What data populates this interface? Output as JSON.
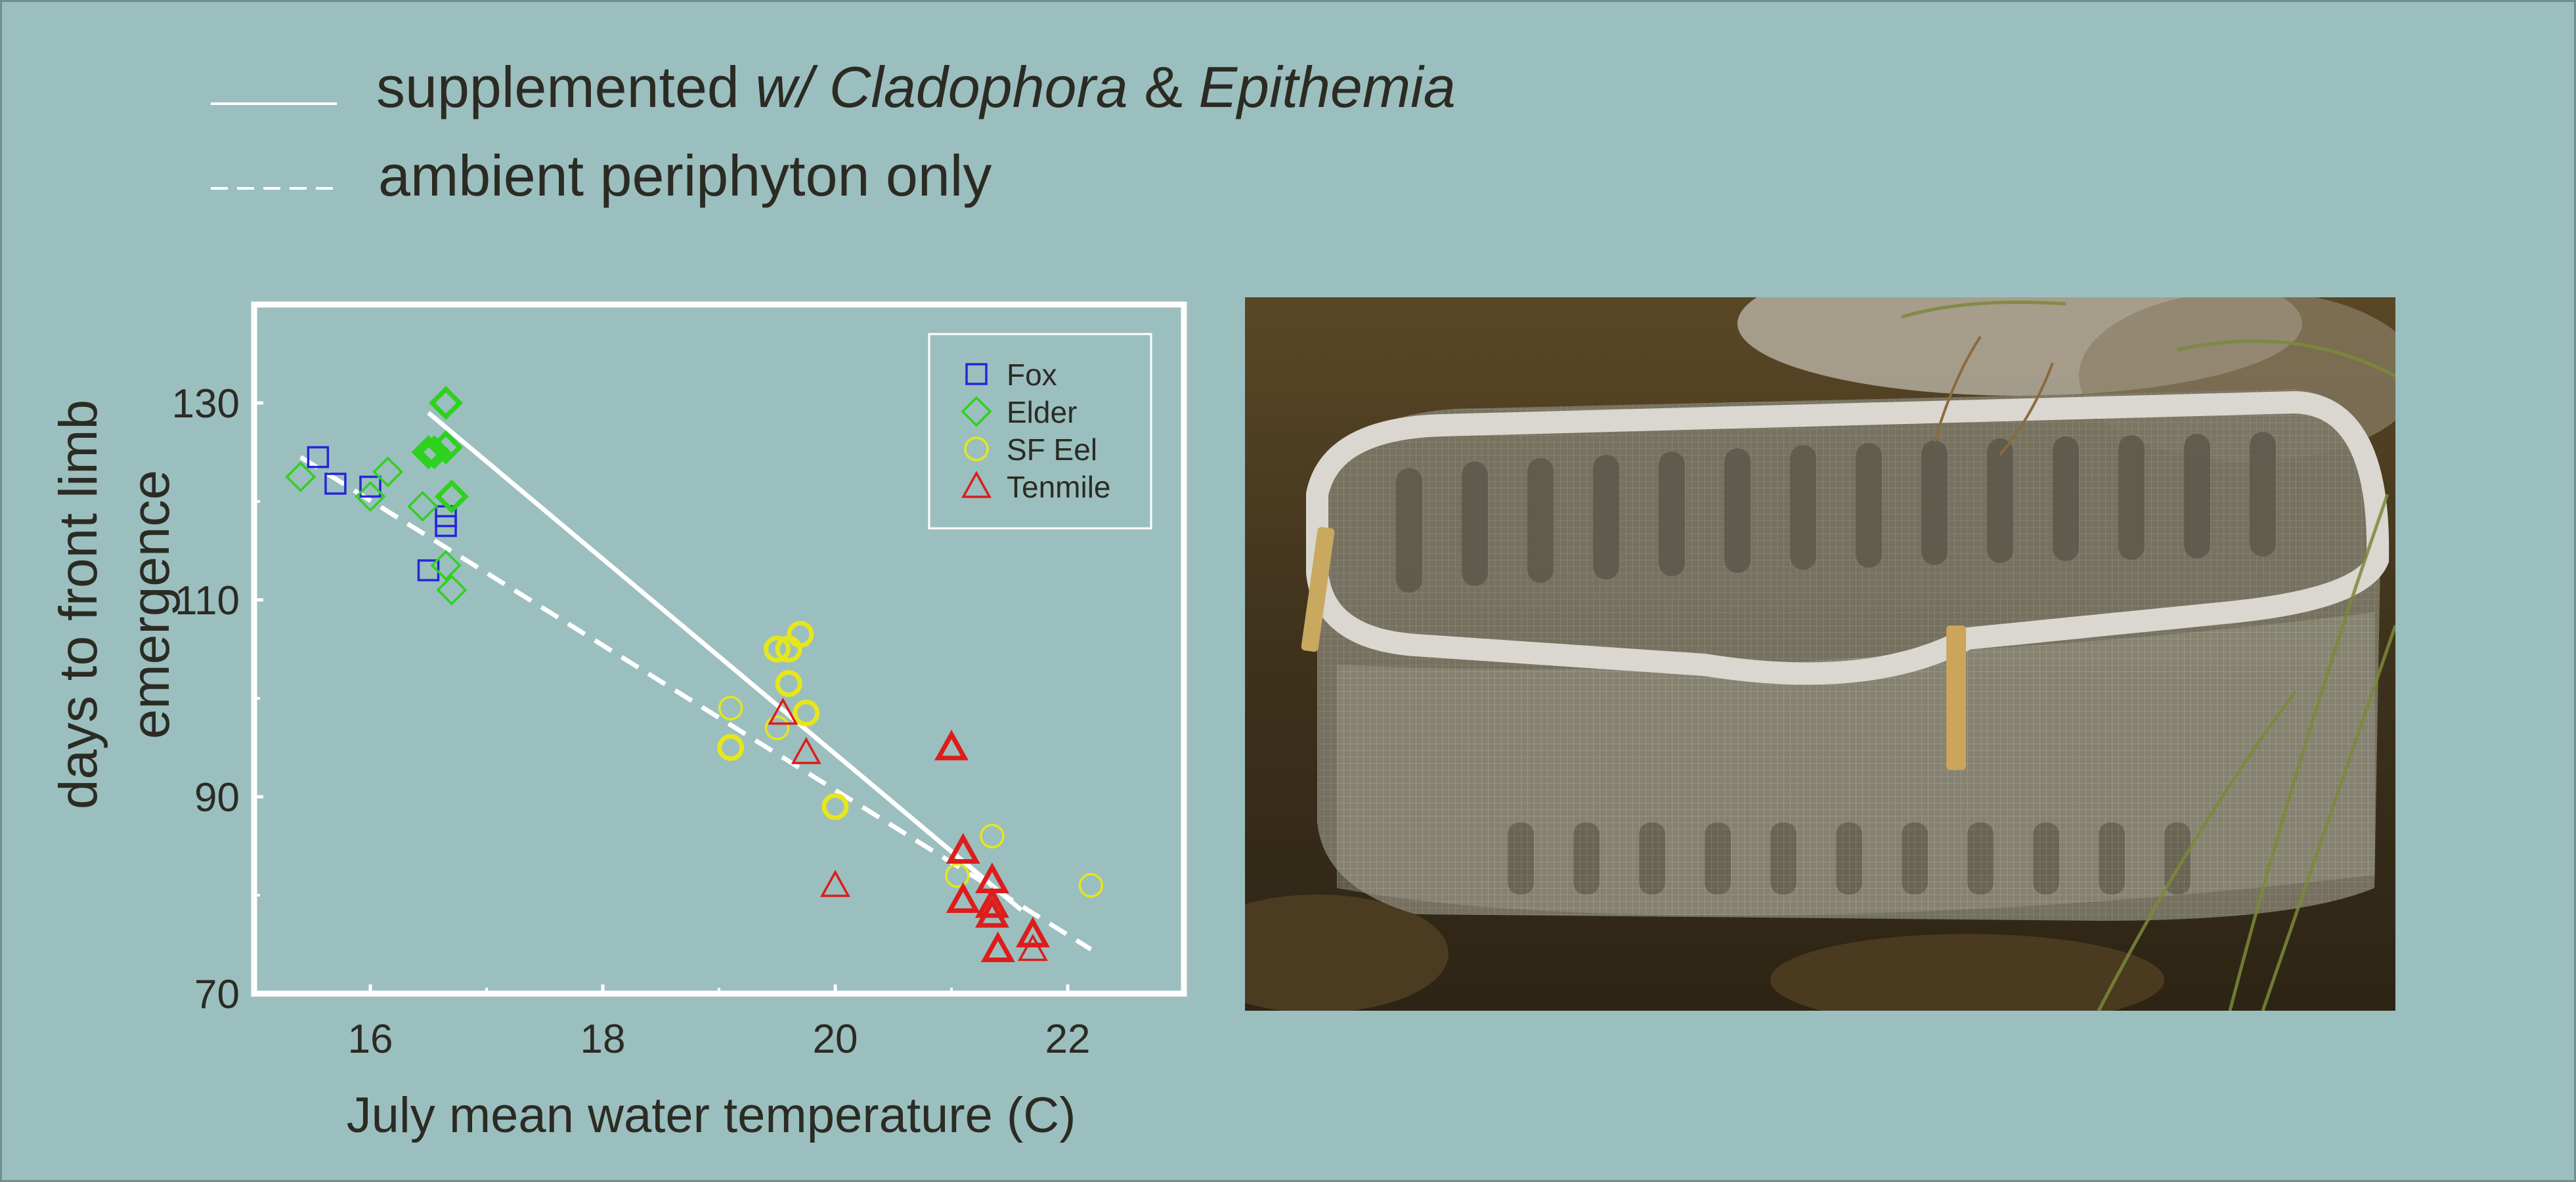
{
  "top_legend": {
    "solid": {
      "t1": "supplemented ",
      "t2": "w/ Cladophora",
      "t3": " & ",
      "t4": "Epithemia"
    },
    "dashed": "ambient periphyton only"
  },
  "chart_data": {
    "type": "scatter",
    "title": "",
    "xlabel": "July mean water temperature (C)",
    "ylabel_line1": "days to front limb",
    "ylabel_line2": "emergence",
    "xlim": [
      15,
      23
    ],
    "ylim": [
      70,
      140
    ],
    "xticks": [
      16,
      18,
      20,
      22
    ],
    "xtick_labels": [
      "16",
      "18",
      "20",
      "22"
    ],
    "yticks": [
      70,
      90,
      110,
      130
    ],
    "ytick_labels": [
      "70",
      "90",
      "110",
      "130"
    ],
    "grid": false,
    "legend_position": "top-right",
    "colors": {
      "Fox": "#2626d9",
      "Elder": "#2fd11f",
      "SF Eel": "#e6e61c",
      "Tenmile": "#dd1c1c",
      "line": "#ffffff"
    },
    "series": [
      {
        "name": "Fox",
        "marker": "square",
        "points": [
          {
            "x": 15.55,
            "y": 124.5,
            "bold": false
          },
          {
            "x": 15.7,
            "y": 121.8,
            "bold": false
          },
          {
            "x": 16.0,
            "y": 121.5,
            "bold": false
          },
          {
            "x": 16.5,
            "y": 113,
            "bold": false
          },
          {
            "x": 16.65,
            "y": 118.5,
            "bold": false
          },
          {
            "x": 16.65,
            "y": 117.5,
            "bold": false
          }
        ]
      },
      {
        "name": "Elder",
        "marker": "diamond",
        "points": [
          {
            "x": 15.4,
            "y": 122.5,
            "bold": false
          },
          {
            "x": 16.0,
            "y": 120.5,
            "bold": false
          },
          {
            "x": 16.15,
            "y": 123,
            "bold": false
          },
          {
            "x": 16.45,
            "y": 119.5,
            "bold": false
          },
          {
            "x": 16.5,
            "y": 125,
            "bold": true
          },
          {
            "x": 16.55,
            "y": 125,
            "bold": true
          },
          {
            "x": 16.65,
            "y": 125.5,
            "bold": true
          },
          {
            "x": 16.65,
            "y": 130,
            "bold": true
          },
          {
            "x": 16.7,
            "y": 120.5,
            "bold": true
          },
          {
            "x": 16.65,
            "y": 113.5,
            "bold": false
          },
          {
            "x": 16.7,
            "y": 111,
            "bold": false
          }
        ]
      },
      {
        "name": "SF Eel",
        "marker": "circle",
        "points": [
          {
            "x": 19.1,
            "y": 99,
            "bold": false
          },
          {
            "x": 19.1,
            "y": 95,
            "bold": true
          },
          {
            "x": 19.5,
            "y": 105,
            "bold": true
          },
          {
            "x": 19.6,
            "y": 105,
            "bold": true
          },
          {
            "x": 19.7,
            "y": 106.5,
            "bold": true
          },
          {
            "x": 19.6,
            "y": 101.5,
            "bold": true
          },
          {
            "x": 19.5,
            "y": 97,
            "bold": false
          },
          {
            "x": 19.75,
            "y": 98.5,
            "bold": true
          },
          {
            "x": 20.0,
            "y": 89,
            "bold": true
          },
          {
            "x": 21.05,
            "y": 82,
            "bold": false
          },
          {
            "x": 21.35,
            "y": 86,
            "bold": false
          },
          {
            "x": 22.2,
            "y": 81,
            "bold": false
          }
        ]
      },
      {
        "name": "Tenmile",
        "marker": "triangle",
        "points": [
          {
            "x": 19.55,
            "y": 98.5,
            "bold": false
          },
          {
            "x": 19.75,
            "y": 94.5,
            "bold": false
          },
          {
            "x": 20.0,
            "y": 81,
            "bold": false
          },
          {
            "x": 21.0,
            "y": 95,
            "bold": true
          },
          {
            "x": 21.1,
            "y": 84.5,
            "bold": true
          },
          {
            "x": 21.1,
            "y": 79.5,
            "bold": true
          },
          {
            "x": 21.35,
            "y": 81.5,
            "bold": true
          },
          {
            "x": 21.35,
            "y": 79,
            "bold": true
          },
          {
            "x": 21.35,
            "y": 78,
            "bold": true
          },
          {
            "x": 21.4,
            "y": 74.5,
            "bold": true
          },
          {
            "x": 21.7,
            "y": 76,
            "bold": true
          },
          {
            "x": 21.7,
            "y": 74.5,
            "bold": false
          }
        ]
      }
    ],
    "fit_lines": [
      {
        "style": "solid",
        "x": [
          16.5,
          21.6
        ],
        "y": [
          129,
          78.5
        ]
      },
      {
        "style": "dashed",
        "x": [
          15.4,
          22.2
        ],
        "y": [
          124.5,
          74.5
        ]
      }
    ]
  }
}
